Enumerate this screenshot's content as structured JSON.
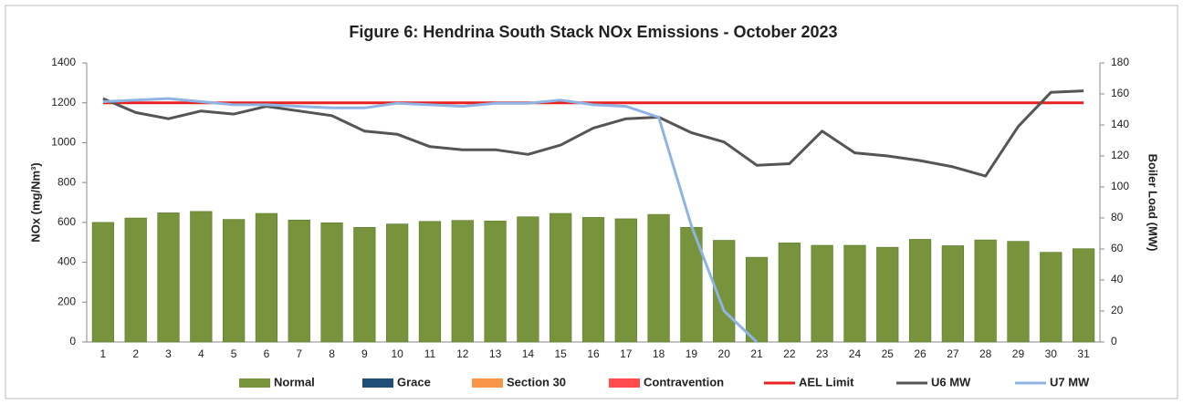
{
  "chart_data": {
    "type": "bar",
    "title": "Figure 6: Hendrina South Stack NOx Emissions -  October 2023",
    "y_label": "NOx (mg/Nm³)",
    "y2_label": "Boiler Load (MW)",
    "categories": [
      "1",
      "2",
      "3",
      "4",
      "5",
      "6",
      "7",
      "8",
      "9",
      "10",
      "11",
      "12",
      "13",
      "14",
      "15",
      "16",
      "17",
      "18",
      "19",
      "20",
      "21",
      "22",
      "23",
      "24",
      "25",
      "26",
      "27",
      "28",
      "29",
      "30",
      "31"
    ],
    "ylim": [
      0,
      1400
    ],
    "yticks": [
      0,
      200,
      400,
      600,
      800,
      1000,
      1200,
      1400
    ],
    "y2lim": [
      0,
      180
    ],
    "y2ticks": [
      0,
      20,
      40,
      60,
      80,
      100,
      120,
      140,
      160,
      180
    ],
    "series": [
      {
        "name": "Normal",
        "type": "bar",
        "color": "#77933c",
        "values": [
          600,
          622,
          648,
          655,
          615,
          645,
          612,
          598,
          575,
          592,
          605,
          610,
          607,
          628,
          645,
          625,
          618,
          640,
          575,
          510,
          425,
          497,
          485,
          485,
          475,
          515,
          483,
          512,
          505,
          450,
          468
        ]
      },
      {
        "name": "Grace",
        "type": "bar",
        "color": "#1f4e79",
        "values": [
          0,
          0,
          0,
          0,
          0,
          0,
          0,
          0,
          0,
          0,
          0,
          0,
          0,
          0,
          0,
          0,
          0,
          0,
          0,
          0,
          0,
          0,
          0,
          0,
          0,
          0,
          0,
          0,
          0,
          0,
          0
        ]
      },
      {
        "name": "Section 30",
        "type": "bar",
        "color": "#f79646",
        "values": [
          0,
          0,
          0,
          0,
          0,
          0,
          0,
          0,
          0,
          0,
          0,
          0,
          0,
          0,
          0,
          0,
          0,
          0,
          0,
          0,
          0,
          0,
          0,
          0,
          0,
          0,
          0,
          0,
          0,
          0,
          0
        ]
      },
      {
        "name": "Contravention",
        "type": "bar",
        "color": "#ff4b4b",
        "values": [
          0,
          0,
          0,
          0,
          0,
          0,
          0,
          0,
          0,
          0,
          0,
          0,
          0,
          0,
          0,
          0,
          0,
          0,
          0,
          0,
          0,
          0,
          0,
          0,
          0,
          0,
          0,
          0,
          0,
          0,
          0
        ]
      },
      {
        "name": "AEL Limit",
        "type": "line",
        "color": "#e8231f",
        "values": [
          1200,
          1200,
          1200,
          1200,
          1200,
          1200,
          1200,
          1200,
          1200,
          1200,
          1200,
          1200,
          1200,
          1200,
          1200,
          1200,
          1200,
          1200,
          1200,
          1200,
          1200,
          1200,
          1200,
          1200,
          1200,
          1200,
          1200,
          1200,
          1200,
          1200,
          1200
        ]
      },
      {
        "name": "U6 MW",
        "type": "line",
        "axis": "y2",
        "color": "#555555",
        "values": [
          157,
          148,
          144,
          149,
          147,
          152,
          149,
          146,
          136,
          134,
          126,
          124,
          124,
          121,
          127,
          138,
          144,
          145,
          135,
          129,
          114,
          115,
          136,
          122,
          120,
          117,
          113,
          107,
          139,
          161,
          162
        ]
      },
      {
        "name": "U7 MW",
        "type": "line",
        "axis": "y2",
        "color": "#8fb4e3",
        "values": [
          155,
          156,
          157,
          155,
          153,
          153,
          152,
          151,
          151,
          154,
          153,
          152,
          154,
          154,
          156,
          153,
          152,
          145,
          75,
          20,
          0,
          null,
          null,
          null,
          null,
          null,
          null,
          null,
          null,
          null,
          null
        ]
      }
    ]
  }
}
